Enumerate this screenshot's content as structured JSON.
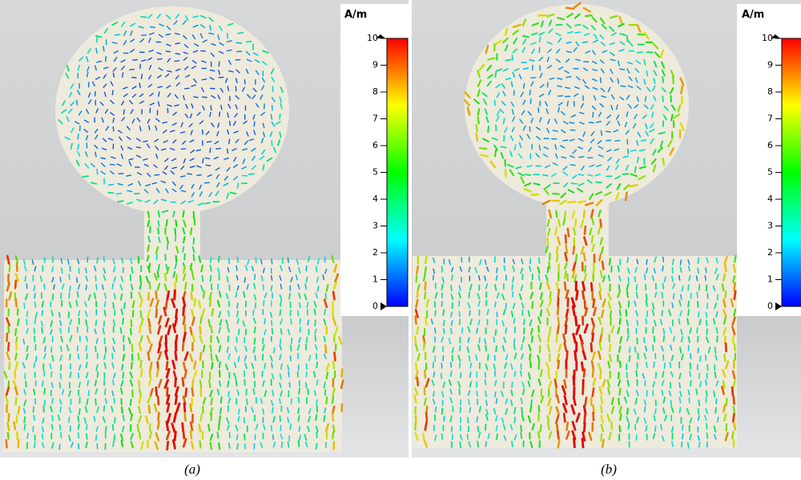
{
  "panels": [
    {
      "caption": "(a)",
      "colorbar": {
        "unit": "A/m",
        "ticks": [
          0,
          1,
          2,
          3,
          4,
          5,
          6,
          7,
          8,
          9,
          10
        ]
      }
    },
    {
      "caption": "(b)",
      "colorbar": {
        "unit": "A/m",
        "ticks": [
          0,
          1,
          2,
          3,
          4,
          5,
          6,
          7,
          8,
          9,
          10
        ]
      }
    }
  ]
}
